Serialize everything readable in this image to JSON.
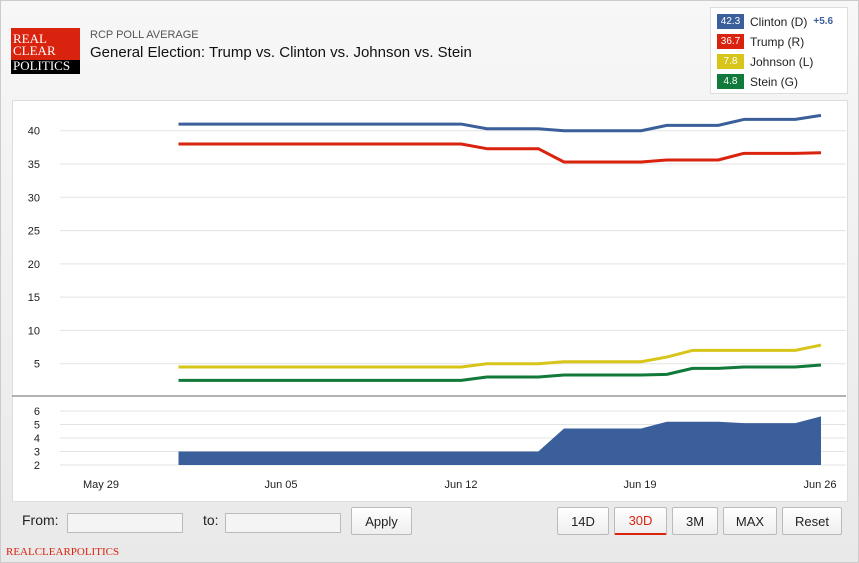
{
  "header": {
    "logo_lines": [
      "REAL",
      "CLEAR",
      "POLITICS"
    ],
    "subtitle": "RCP POLL AVERAGE",
    "title": "General Election: Trump vs. Clinton vs. Johnson vs. Stein"
  },
  "legend": [
    {
      "value": "42.3",
      "label": "Clinton (D)",
      "delta": "+5.6",
      "color": "#3b5f9a"
    },
    {
      "value": "36.7",
      "label": "Trump (R)",
      "color": "#d9230f"
    },
    {
      "value": "7.8",
      "label": "Johnson (L)",
      "color": "#d8c51a"
    },
    {
      "value": "4.8",
      "label": "Stein (G)",
      "color": "#117a3a"
    }
  ],
  "controls": {
    "from_label": "From:",
    "to_label": "to:",
    "from_value": "",
    "to_value": "",
    "apply": "Apply",
    "ranges": [
      "14D",
      "30D",
      "3M",
      "MAX"
    ],
    "active_range": "30D",
    "reset": "Reset"
  },
  "footer": "REALCLEARPOLITICS",
  "chart_data": {
    "type": "line",
    "title": "General Election: Trump vs. Clinton vs. Johnson vs. Stein",
    "x_start_day": "Jun 01",
    "x_ticks": [
      "May 29",
      "Jun 05",
      "Jun 12",
      "Jun 19",
      "Jun 26"
    ],
    "y_ticks": [
      5,
      10,
      15,
      20,
      25,
      30,
      35,
      40
    ],
    "ylim": [
      0,
      43
    ],
    "series": [
      {
        "name": "Clinton (D)",
        "color": "#3b5f9a",
        "values": [
          41,
          41,
          41,
          41,
          41,
          41,
          41,
          41,
          41,
          41,
          41,
          41,
          40.3,
          40.3,
          40.3,
          40,
          40,
          40,
          40,
          40.8,
          40.8,
          40.8,
          41.7,
          41.7,
          41.7,
          42.3
        ]
      },
      {
        "name": "Trump (R)",
        "color": "#d9230f",
        "values": [
          38,
          38,
          38,
          38,
          38,
          38,
          38,
          38,
          38,
          38,
          38,
          38,
          37.3,
          37.3,
          37.3,
          35.3,
          35.3,
          35.3,
          35.3,
          35.6,
          35.6,
          35.6,
          36.6,
          36.6,
          36.6,
          36.7
        ]
      },
      {
        "name": "Johnson (L)",
        "color": "#d8c51a",
        "values": [
          4.5,
          4.5,
          4.5,
          4.5,
          4.5,
          4.5,
          4.5,
          4.5,
          4.5,
          4.5,
          4.5,
          4.5,
          5,
          5,
          5,
          5.3,
          5.3,
          5.3,
          5.3,
          6,
          7,
          7,
          7,
          7,
          7,
          7.8
        ]
      },
      {
        "name": "Stein (G)",
        "color": "#117a3a",
        "values": [
          2.5,
          2.5,
          2.5,
          2.5,
          2.5,
          2.5,
          2.5,
          2.5,
          2.5,
          2.5,
          2.5,
          2.5,
          3,
          3,
          3,
          3.3,
          3.3,
          3.3,
          3.3,
          3.4,
          4.3,
          4.3,
          4.5,
          4.5,
          4.5,
          4.8
        ]
      }
    ],
    "spread": {
      "name": "Clinton spread",
      "color": "#3b5f9a",
      "y_ticks": [
        2,
        3,
        4,
        5,
        6
      ],
      "ylim": [
        2,
        6
      ],
      "values": [
        3,
        3,
        3,
        3,
        3,
        3,
        3,
        3,
        3,
        3,
        3,
        3,
        3,
        3,
        3,
        4.7,
        4.7,
        4.7,
        4.7,
        5.2,
        5.2,
        5.2,
        5.1,
        5.1,
        5.1,
        5.6
      ]
    }
  }
}
